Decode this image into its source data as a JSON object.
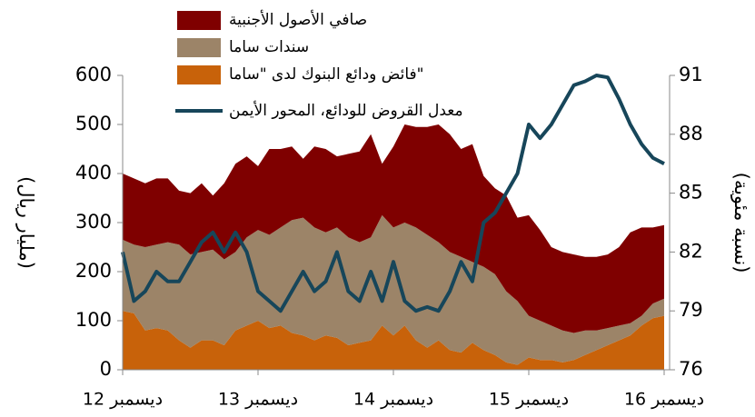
{
  "chart_data": {
    "type": "stacked_area_line",
    "y_label": "(مليار ريال)",
    "y2_label": "(نسبة مئوية)",
    "categories": [
      "ديسمبر 12",
      null,
      null,
      null,
      null,
      null,
      null,
      null,
      null,
      null,
      null,
      null,
      "ديسمبر 13",
      null,
      null,
      null,
      null,
      null,
      null,
      null,
      null,
      null,
      null,
      null,
      "ديسمبر 14",
      null,
      null,
      null,
      null,
      null,
      null,
      null,
      null,
      null,
      null,
      null,
      "ديسمبر 15",
      null,
      null,
      null,
      null,
      null,
      null,
      null,
      null,
      null,
      null,
      null,
      "ديسمبر 16"
    ],
    "ylim": [
      0,
      600
    ],
    "yticks": [
      0,
      100,
      200,
      300,
      400,
      500,
      600
    ],
    "y2lim": [
      76,
      91
    ],
    "y2ticks": [
      76,
      79,
      82,
      85,
      88,
      91
    ],
    "series": [
      {
        "name": "فائض ودائع البنوك لدى \"ساما\"",
        "color": "#c8620a",
        "kind": "area",
        "values": [
          120,
          115,
          80,
          85,
          80,
          60,
          45,
          60,
          60,
          50,
          80,
          90,
          100,
          85,
          90,
          75,
          70,
          60,
          70,
          65,
          50,
          55,
          60,
          90,
          70,
          90,
          60,
          45,
          60,
          40,
          35,
          55,
          40,
          30,
          15,
          10,
          25,
          20,
          20,
          15,
          20,
          30,
          40,
          50,
          60,
          70,
          90,
          105,
          110
        ]
      },
      {
        "name": "سندات ساما",
        "color": "#9c8468",
        "kind": "area",
        "values": [
          145,
          140,
          170,
          170,
          180,
          195,
          190,
          180,
          185,
          175,
          160,
          180,
          185,
          190,
          200,
          230,
          240,
          230,
          210,
          225,
          220,
          205,
          210,
          225,
          220,
          210,
          230,
          230,
          200,
          200,
          195,
          165,
          170,
          165,
          145,
          130,
          85,
          80,
          70,
          65,
          55,
          50,
          40,
          35,
          30,
          25,
          20,
          30,
          35
        ]
      },
      {
        "name": "صافي الأصول الأجنبية",
        "color": "#7f0000",
        "kind": "area",
        "values": [
          135,
          135,
          130,
          135,
          130,
          110,
          125,
          140,
          110,
          155,
          180,
          165,
          130,
          175,
          160,
          150,
          120,
          165,
          170,
          145,
          170,
          185,
          210,
          105,
          165,
          200,
          205,
          220,
          240,
          240,
          220,
          240,
          185,
          175,
          195,
          170,
          205,
          185,
          160,
          160,
          160,
          150,
          150,
          150,
          160,
          185,
          180,
          155,
          150
        ]
      },
      {
        "name": "معدل القروض للودائع، المحور الأيمن",
        "color": "#17465a",
        "kind": "line",
        "axis": "y2",
        "values": [
          82,
          79.5,
          80,
          81,
          80.5,
          80.5,
          81.5,
          82.5,
          83,
          82,
          83,
          82,
          80,
          79.5,
          79,
          80,
          81,
          80,
          80.5,
          82,
          80,
          79.5,
          81,
          79.5,
          81.5,
          79.5,
          79,
          79.2,
          79,
          80,
          81.5,
          80.5,
          83.5,
          84,
          85,
          86,
          88.5,
          87.8,
          88.5,
          89.5,
          90.5,
          90.7,
          91,
          90.9,
          89.8,
          88.5,
          87.5,
          86.8,
          86.5
        ]
      }
    ]
  }
}
